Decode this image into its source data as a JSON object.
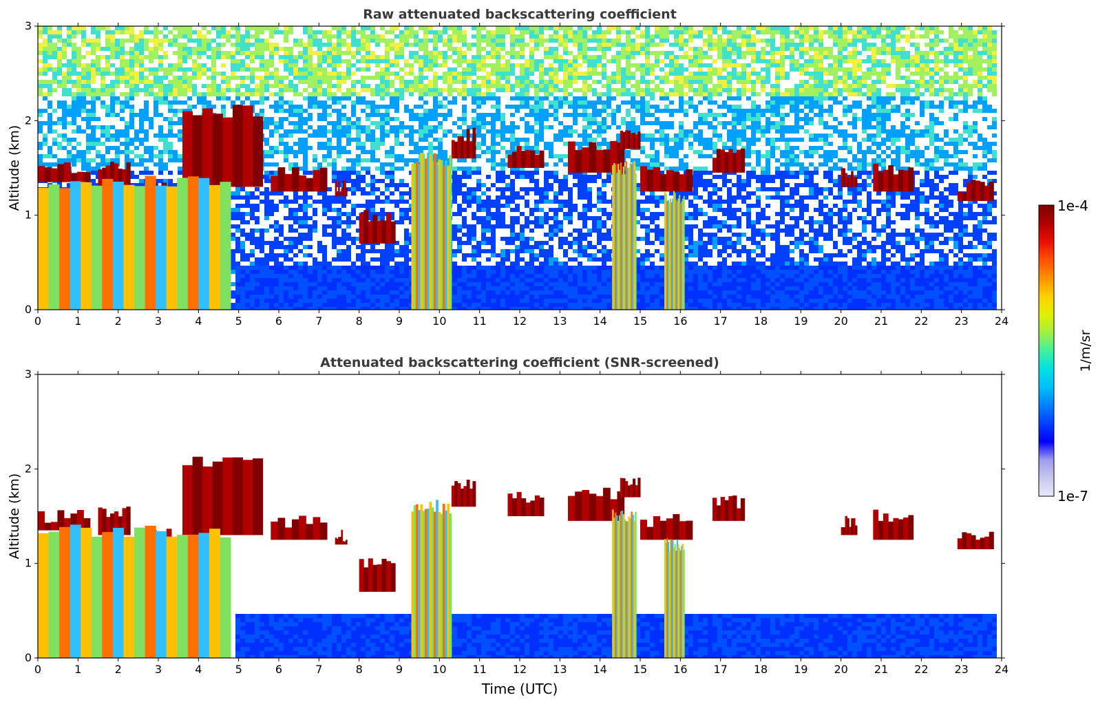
{
  "chart_data": [
    {
      "type": "heatmap",
      "title": "Raw attenuated backscattering coefficient",
      "xlabel": "",
      "ylabel": "Altitude (km)",
      "xlim": [
        0,
        24
      ],
      "ylim": [
        0,
        3
      ],
      "xticks": [
        "0",
        "1",
        "2",
        "3",
        "4",
        "5",
        "6",
        "7",
        "8",
        "9",
        "10",
        "11",
        "12",
        "13",
        "14",
        "15",
        "16",
        "17",
        "18",
        "19",
        "20",
        "21",
        "22",
        "23",
        "24"
      ],
      "yticks": [
        "0",
        "1",
        "2",
        "3"
      ],
      "colormap": "jet",
      "grid": false,
      "features": [
        {
          "t0": 0.0,
          "t1": 1.3,
          "z0": 1.35,
          "z1": 1.5,
          "level": "high"
        },
        {
          "t0": 1.5,
          "t1": 2.3,
          "z0": 1.3,
          "z1": 1.55,
          "level": "high"
        },
        {
          "t0": 2.7,
          "t1": 3.7,
          "z0": 1.15,
          "z1": 1.3,
          "level": "high"
        },
        {
          "t0": 3.6,
          "t1": 5.6,
          "z0": 1.3,
          "z1": 2.1,
          "level": "high"
        },
        {
          "t0": 5.8,
          "t1": 7.2,
          "z0": 1.25,
          "z1": 1.45,
          "level": "high"
        },
        {
          "t0": 7.4,
          "t1": 7.7,
          "z0": 1.2,
          "z1": 1.3,
          "level": "high"
        },
        {
          "t0": 8.0,
          "t1": 8.9,
          "z0": 0.7,
          "z1": 1.0,
          "level": "high"
        },
        {
          "t0": 10.3,
          "t1": 10.9,
          "z0": 1.6,
          "z1": 1.85,
          "level": "high"
        },
        {
          "t0": 11.7,
          "t1": 12.6,
          "z0": 1.5,
          "z1": 1.7,
          "level": "high"
        },
        {
          "t0": 13.2,
          "t1": 14.6,
          "z0": 1.45,
          "z1": 1.75,
          "level": "high"
        },
        {
          "t0": 14.5,
          "t1": 15.0,
          "z0": 1.7,
          "z1": 1.9,
          "level": "high"
        },
        {
          "t0": 15.0,
          "t1": 16.3,
          "z0": 1.25,
          "z1": 1.45,
          "level": "high"
        },
        {
          "t0": 16.8,
          "t1": 17.6,
          "z0": 1.45,
          "z1": 1.65,
          "level": "high"
        },
        {
          "t0": 20.0,
          "t1": 20.4,
          "z0": 1.3,
          "z1": 1.45,
          "level": "high"
        },
        {
          "t0": 20.8,
          "t1": 21.8,
          "z0": 1.25,
          "z1": 1.5,
          "level": "high"
        },
        {
          "t0": 22.9,
          "t1": 23.8,
          "z0": 1.15,
          "z1": 1.3,
          "level": "high"
        },
        {
          "t0": 0.0,
          "t1": 4.8,
          "z0": 0.0,
          "z1": 1.35,
          "level": "medium"
        },
        {
          "t0": 9.3,
          "t1": 10.3,
          "z0": 0.0,
          "z1": 1.6,
          "level": "medium"
        },
        {
          "t0": 14.3,
          "t1": 14.9,
          "z0": 0.0,
          "z1": 1.5,
          "level": "medium"
        },
        {
          "t0": 15.6,
          "t1": 16.1,
          "z0": 0.0,
          "z1": 1.2,
          "level": "medium"
        },
        {
          "t0": 4.8,
          "t1": 23.8,
          "z0": 0.0,
          "z1": 0.5,
          "level": "low"
        }
      ]
    },
    {
      "type": "heatmap",
      "title": "Attenuated backscattering coefficient (SNR-screened)",
      "xlabel": "Time (UTC)",
      "ylabel": "Altitude (km)",
      "xlim": [
        0,
        24
      ],
      "ylim": [
        0,
        3
      ],
      "xticks": [
        "0",
        "1",
        "2",
        "3",
        "4",
        "5",
        "6",
        "7",
        "8",
        "9",
        "10",
        "11",
        "12",
        "13",
        "14",
        "15",
        "16",
        "17",
        "18",
        "19",
        "20",
        "21",
        "22",
        "23",
        "24"
      ],
      "yticks": [
        "0",
        "1",
        "2",
        "3"
      ],
      "colormap": "jet",
      "grid": false
    }
  ],
  "colorbar": {
    "max_label": "1e-4",
    "min_label": "1e-7",
    "unit_label": "1/m/sr",
    "colors": [
      "#e8e8f8",
      "#c8c8f0",
      "#9c9cec",
      "#0000ff",
      "#0040ff",
      "#0080ff",
      "#00c0ff",
      "#00e0e0",
      "#40f0a0",
      "#a0f040",
      "#e0f000",
      "#ffd000",
      "#ff9000",
      "#ff5000",
      "#e81000",
      "#b00000",
      "#800000"
    ]
  }
}
